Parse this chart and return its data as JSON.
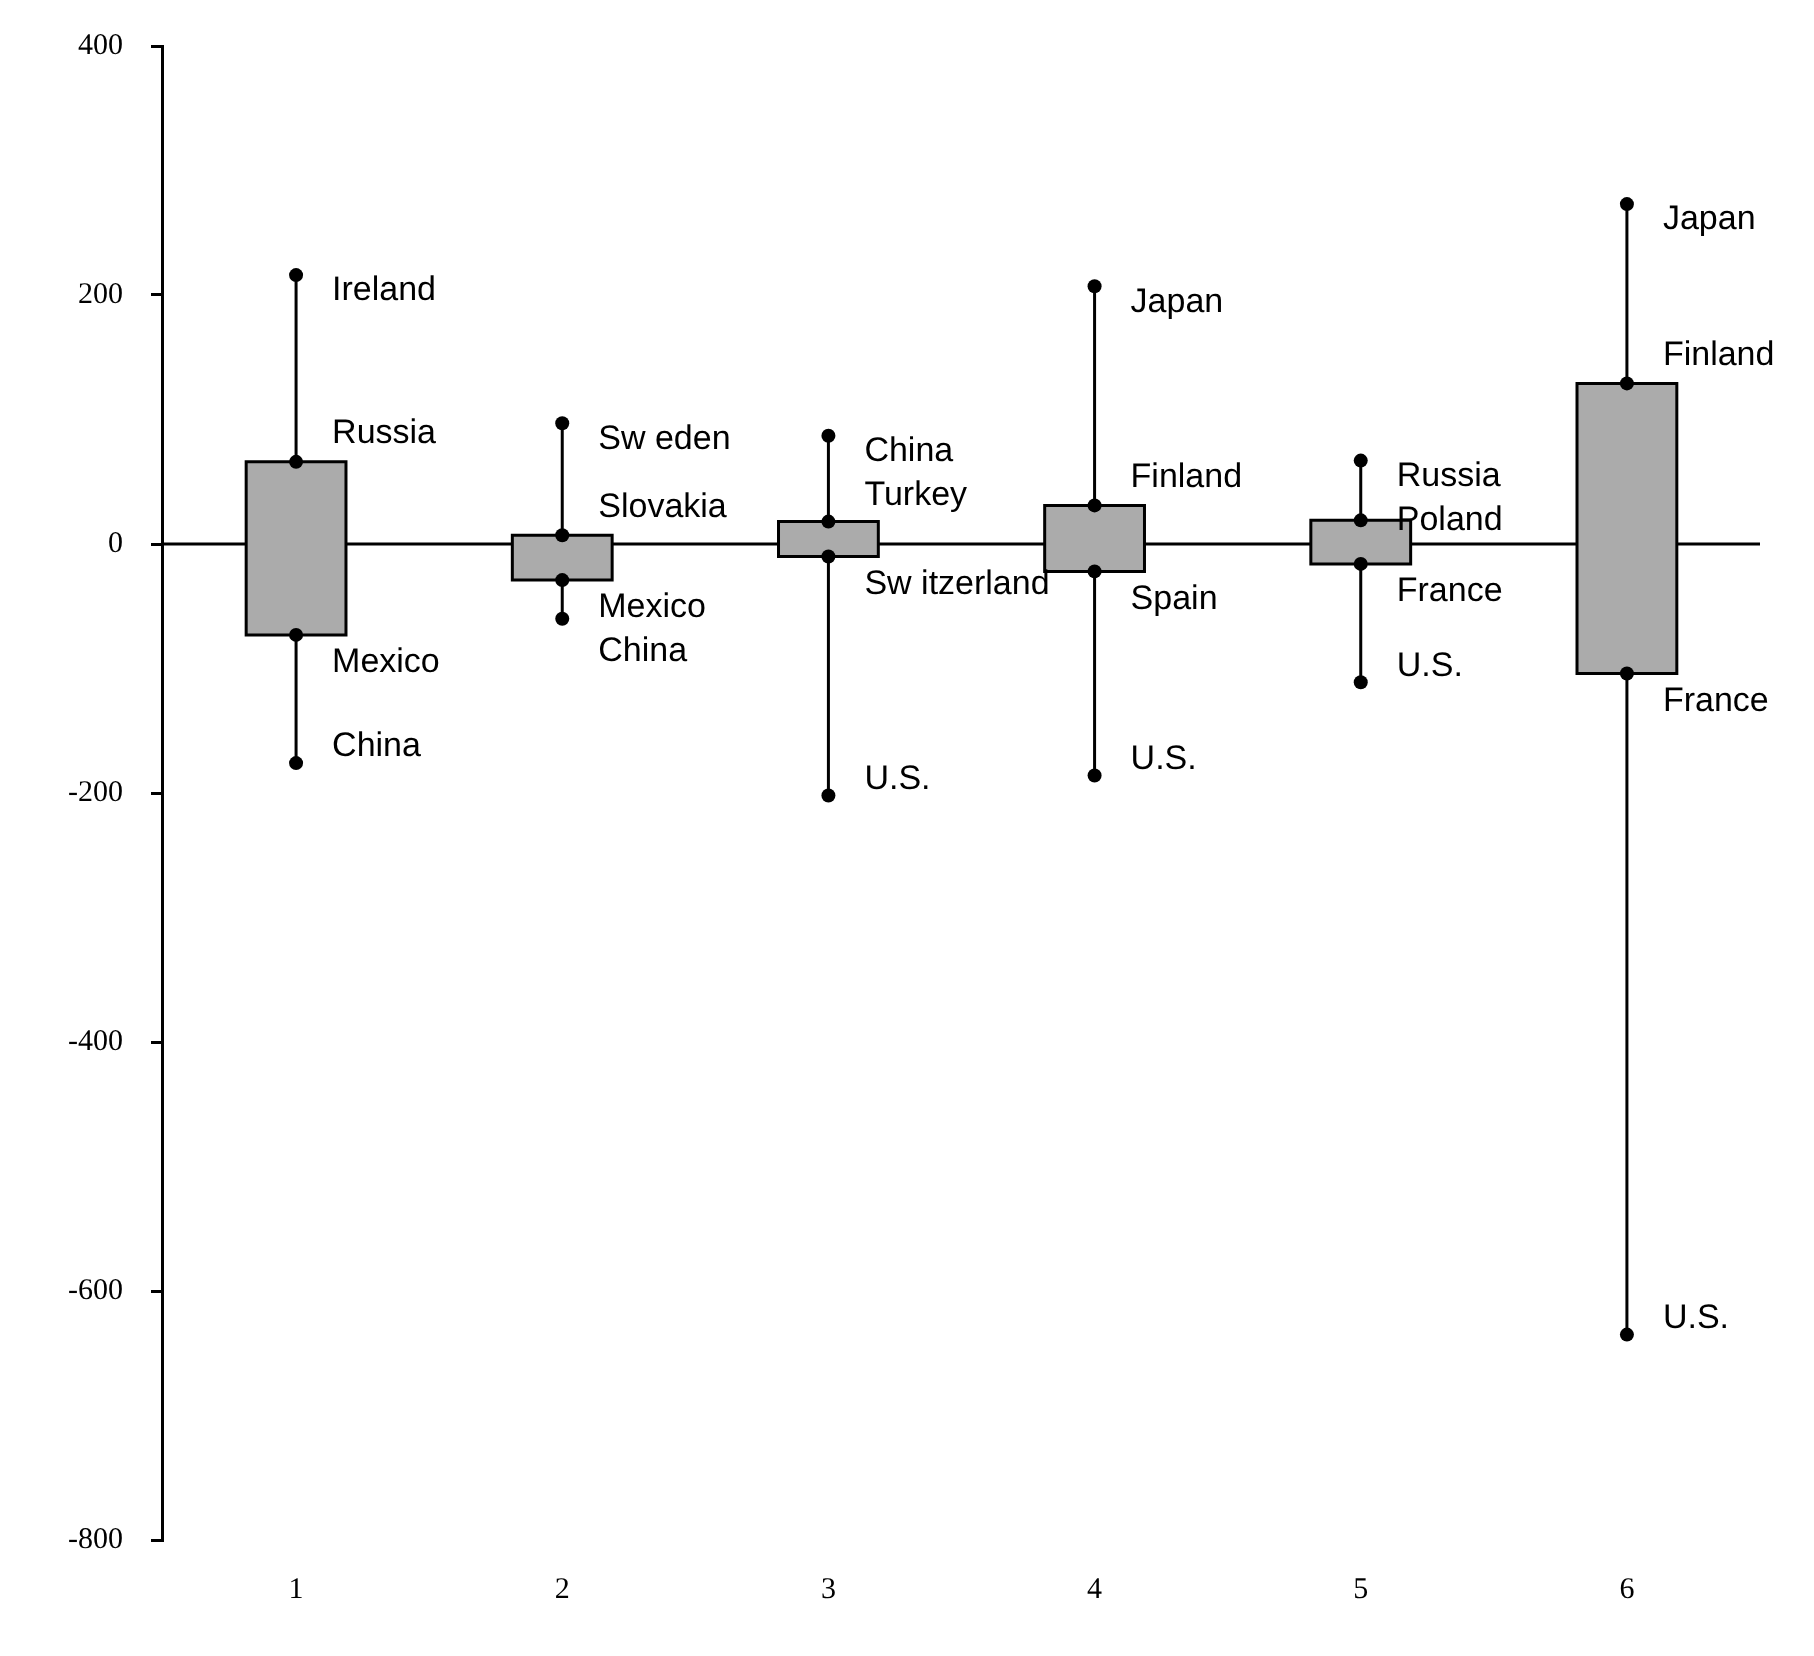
{
  "chart_data": {
    "type": "box",
    "categories": [
      "1",
      "2",
      "3",
      "4",
      "5",
      "6"
    ],
    "boxes": [
      {
        "low": -176,
        "q1": -73,
        "q3": 66,
        "high": 216
      },
      {
        "low": -60,
        "q1": -29,
        "q3": 7,
        "high": 97
      },
      {
        "low": -202,
        "q1": -10,
        "q3": 18,
        "high": 87
      },
      {
        "low": -186,
        "q1": -22,
        "q3": 31,
        "high": 207
      },
      {
        "low": -111,
        "q1": -16,
        "q3": 19,
        "high": 67
      },
      {
        "low": -635,
        "q1": -104,
        "q3": 129,
        "high": 273
      }
    ],
    "color": "#ababab",
    "ylim": [
      -800,
      400
    ],
    "yticks": [
      -800,
      -600,
      -400,
      -200,
      0,
      200,
      400
    ],
    "grid": false,
    "legend": false,
    "ref_lines": [
      {
        "axis": "y",
        "value": 0
      }
    ],
    "annotations": [
      {
        "text": "Ireland",
        "x": "1",
        "y": 216
      },
      {
        "text": "Russia",
        "x": "1",
        "y": 66
      },
      {
        "text": "Mexico",
        "x": "1",
        "y": -73
      },
      {
        "text": "China",
        "x": "1",
        "y": -176
      },
      {
        "text": "Sw eden",
        "x": "2",
        "y": 97
      },
      {
        "text": "Slovakia",
        "x": "2",
        "y": 7
      },
      {
        "text": "Mexico",
        "x": "2",
        "y": -29
      },
      {
        "text": "China",
        "x": "2",
        "y": -60
      },
      {
        "text": "China",
        "x": "3",
        "y": 87
      },
      {
        "text": "Turkey",
        "x": "3",
        "y": 18
      },
      {
        "text": "Sw itzerland",
        "x": "3",
        "y": -10
      },
      {
        "text": "U.S.",
        "x": "3",
        "y": -202
      },
      {
        "text": "Japan",
        "x": "4",
        "y": 207
      },
      {
        "text": "Finland",
        "x": "4",
        "y": 31
      },
      {
        "text": "Spain",
        "x": "4",
        "y": -22
      },
      {
        "text": "U.S.",
        "x": "4",
        "y": -186
      },
      {
        "text": "Russia",
        "x": "5",
        "y": 67
      },
      {
        "text": "Poland",
        "x": "5",
        "y": 19
      },
      {
        "text": "France",
        "x": "5",
        "y": -16
      },
      {
        "text": "U.S.",
        "x": "5",
        "y": -111
      },
      {
        "text": "Japan",
        "x": "6",
        "y": 273
      },
      {
        "text": "Finland",
        "x": "6",
        "y": 129
      },
      {
        "text": "France",
        "x": "6",
        "y": -104
      },
      {
        "text": "U.S.",
        "x": "6",
        "y": -635
      }
    ]
  }
}
